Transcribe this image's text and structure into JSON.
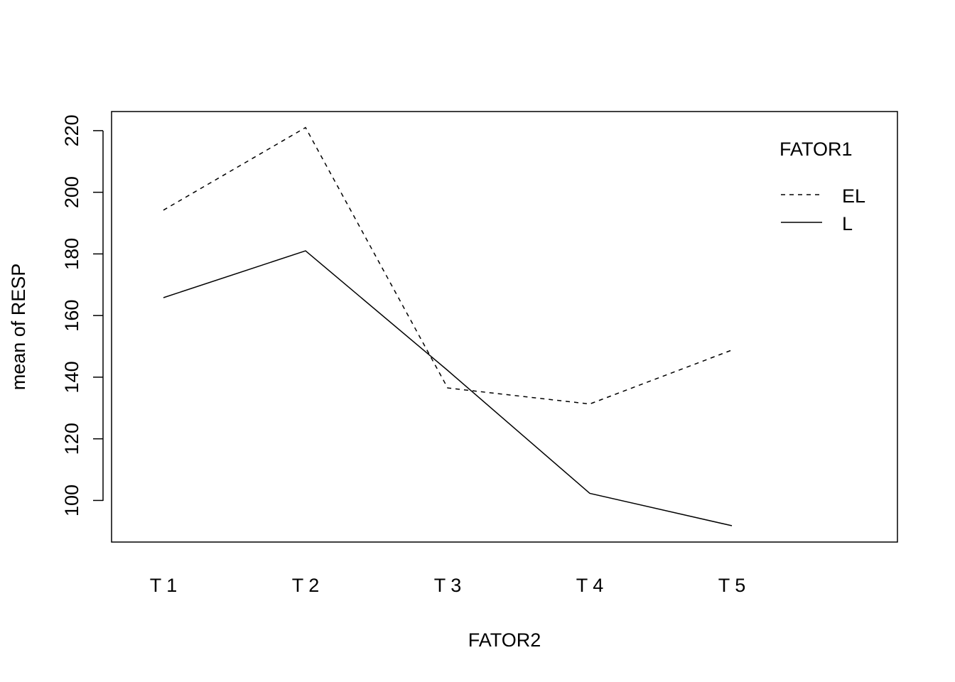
{
  "chart_data": {
    "type": "line",
    "xlabel": "FATOR2",
    "ylabel": "mean of  RESP",
    "categories": [
      "T 1",
      "T 2",
      "T 3",
      "T 4",
      "T 5"
    ],
    "y_ticks": [
      "100",
      "120",
      "140",
      "160",
      "180",
      "200",
      "220"
    ],
    "ylim": [
      86.5,
      226.2
    ],
    "grid": false,
    "legend": {
      "title": "FATOR1",
      "position": "top-right",
      "entries": [
        "EL",
        "L"
      ]
    },
    "series": [
      {
        "name": "EL",
        "line_style": "dashed",
        "values": [
          194.2,
          221.0,
          136.5,
          131.3,
          148.8
        ]
      },
      {
        "name": "L",
        "line_style": "solid",
        "values": [
          165.8,
          181.0,
          142.2,
          102.3,
          91.8
        ]
      }
    ]
  }
}
